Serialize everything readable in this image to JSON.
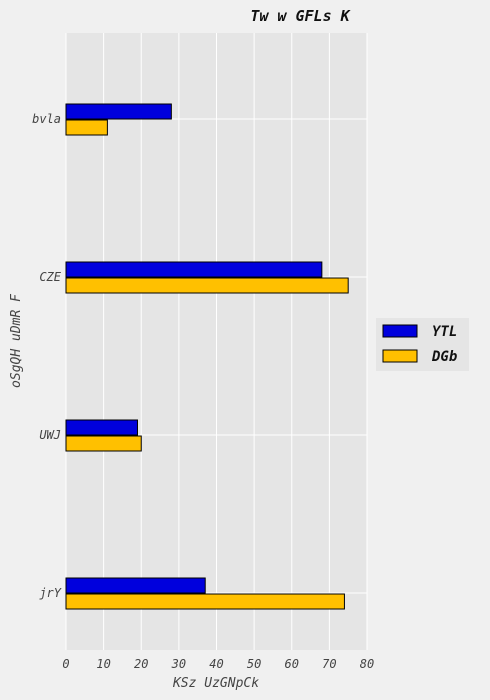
{
  "chart_data": {
    "type": "bar",
    "orientation": "horizontal",
    "title": "Tw w GFLs  K",
    "xlabel": "KSz UzGNpCk",
    "ylabel": "oSgQH uDmR F",
    "categories": [
      "bvla",
      "CZE",
      "UWJ",
      "jrY"
    ],
    "series": [
      {
        "name": "YTL",
        "color": "#0000dd",
        "values": [
          28,
          68,
          19,
          37
        ]
      },
      {
        "name": "DGb",
        "color": "#ffc000",
        "values": [
          11,
          75,
          20,
          74
        ]
      }
    ],
    "xlim": [
      0,
      80
    ],
    "xticks": [
      0,
      10,
      20,
      30,
      40,
      50,
      60,
      70,
      80
    ],
    "grid": true,
    "legend_position": "right"
  }
}
